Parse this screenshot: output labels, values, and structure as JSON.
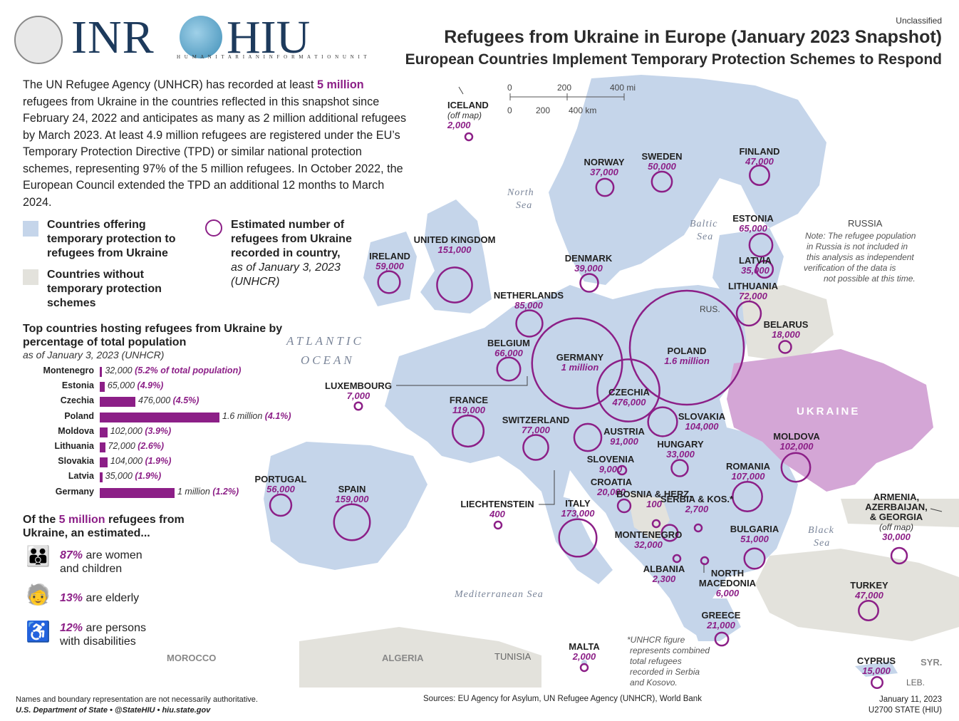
{
  "header": {
    "classification": "Unclassified",
    "title": "Refugees from Ukraine in Europe (January 2023 Snapshot)",
    "subtitle": "European Countries Implement Temporary Protection Schemes to Respond",
    "logo_left": "INR",
    "logo_right": "HIU",
    "logo_tagline": "H U M A N I T A R I A N   I N F O R M A T I O N   U N I T"
  },
  "intro": {
    "lead": "The UN Refugee Agency (UNHCR) has recorded at least ",
    "highlight": "5 million",
    "body": " refugees from Ukraine in the countries reflected in this snapshot since February 24, 2022 and anticipates as many as 2 million additional refugees by March 2023. At least 4.9 million refugees are registered under the EU’s Temporary Protection Directive (TPD) or similar national protection schemes, representing 97% of the 5 million refugees. In October 2022, the European Council extended the TPD an additional 12 months to March 2024."
  },
  "legend": {
    "protection": "Countries offering temporary protection to refugees from Ukraine",
    "no_protection": "Countries without temporary protection schemes",
    "bubble_main": "Estimated number of refugees from Ukraine recorded in country,",
    "bubble_note": " as of January 3, 2023 (UNHCR)",
    "colors": {
      "protection": "#c5d5ea",
      "no_protection": "#e3e2dc",
      "ukraine": "#d4a6d6",
      "accent": "#8c1f87"
    }
  },
  "ranking": {
    "title": "Top countries hosting refugees from Ukraine by percentage of total population",
    "subtitle": "as of January 3, 2023 (UNHCR)",
    "rows": [
      {
        "country": "Montenegro",
        "value": "32,000",
        "pct": "(5.2% of total population)",
        "refugees": 32000
      },
      {
        "country": "Estonia",
        "value": "65,000",
        "pct": "(4.9%)",
        "refugees": 65000
      },
      {
        "country": "Czechia",
        "value": "476,000",
        "pct": "(4.5%)",
        "refugees": 476000
      },
      {
        "country": "Poland",
        "value": "1.6 million",
        "pct": "(4.1%)",
        "refugees": 1600000
      },
      {
        "country": "Moldova",
        "value": "102,000",
        "pct": "(3.9%)",
        "refugees": 102000
      },
      {
        "country": "Lithuania",
        "value": "72,000",
        "pct": "(2.6%)",
        "refugees": 72000
      },
      {
        "country": "Slovakia",
        "value": "104,000",
        "pct": "(1.9%)",
        "refugees": 104000
      },
      {
        "country": "Latvia",
        "value": "35,000",
        "pct": "(1.9%)",
        "refugees": 35000
      },
      {
        "country": "Germany",
        "value": "1 million",
        "pct": "(1.2%)",
        "refugees": 1000000
      }
    ]
  },
  "demographics": {
    "title_lead": "Of the ",
    "title_highlight": "5 million",
    "title_rest": " refugees from Ukraine, an estimated...",
    "items": [
      {
        "pct": "87%",
        "text": " are women and children",
        "icon": "women-children-icon"
      },
      {
        "pct": "13%",
        "text": " are elderly",
        "icon": "elderly-icon"
      },
      {
        "pct": "12%",
        "text": " are persons with disabilities",
        "icon": "wheelchair-icon"
      }
    ]
  },
  "map": {
    "scale": {
      "mi": [
        "0",
        "200",
        "400 mi"
      ],
      "km": [
        "0",
        "200",
        "400 km"
      ]
    },
    "seas": {
      "north_sea": [
        "North",
        "Sea"
      ],
      "baltic_sea": [
        "Baltic",
        "Sea"
      ],
      "atlantic": [
        "ATLANTIC",
        "OCEAN"
      ],
      "med": "Mediterranean Sea",
      "black_sea": [
        "Black",
        "Sea"
      ]
    },
    "countries": [
      {
        "name": "ICELAND",
        "value": "2,000",
        "note": "(off map)",
        "refugees": 2000
      },
      {
        "name": "NORWAY",
        "value": "37,000",
        "refugees": 37000
      },
      {
        "name": "SWEDEN",
        "value": "50,000",
        "refugees": 50000
      },
      {
        "name": "FINLAND",
        "value": "47,000",
        "refugees": 47000
      },
      {
        "name": "ESTONIA",
        "value": "65,000",
        "refugees": 65000
      },
      {
        "name": "LATVIA",
        "value": "35,000",
        "refugees": 35000
      },
      {
        "name": "LITHUANIA",
        "value": "72,000",
        "refugees": 72000
      },
      {
        "name": "BELARUS",
        "value": "18,000",
        "refugees": 18000
      },
      {
        "name": "IRELAND",
        "value": "59,000",
        "refugees": 59000
      },
      {
        "name": "UNITED KINGDOM",
        "value": "151,000",
        "refugees": 151000
      },
      {
        "name": "DENMARK",
        "value": "39,000",
        "refugees": 39000
      },
      {
        "name": "NETHERLANDS",
        "value": "85,000",
        "refugees": 85000
      },
      {
        "name": "BELGIUM",
        "value": "66,000",
        "refugees": 66000
      },
      {
        "name": "GERMANY",
        "value": "1 million",
        "refugees": 1000000
      },
      {
        "name": "POLAND",
        "value": "1.6 million",
        "refugees": 1600000
      },
      {
        "name": "CZECHIA",
        "value": "476,000",
        "refugees": 476000
      },
      {
        "name": "LUXEMBOURG",
        "value": "7,000",
        "refugees": 7000
      },
      {
        "name": "FRANCE",
        "value": "119,000",
        "refugees": 119000
      },
      {
        "name": "SWITZERLAND",
        "value": "77,000",
        "refugees": 77000
      },
      {
        "name": "AUSTRIA",
        "value": "91,000",
        "refugees": 91000
      },
      {
        "name": "SLOVAKIA",
        "value": "104,000",
        "refugees": 104000
      },
      {
        "name": "HUNGARY",
        "value": "33,000",
        "refugees": 33000
      },
      {
        "name": "SLOVENIA",
        "value": "9,000",
        "refugees": 9000
      },
      {
        "name": "CROATIA",
        "value": "20,000",
        "refugees": 20000
      },
      {
        "name": "MOLDOVA",
        "value": "102,000",
        "refugees": 102000
      },
      {
        "name": "ROMANIA",
        "value": "107,000",
        "refugees": 107000
      },
      {
        "name": "PORTUGAL",
        "value": "56,000",
        "refugees": 56000
      },
      {
        "name": "SPAIN",
        "value": "159,000",
        "refugees": 159000
      },
      {
        "name": "LIECHTENSTEIN",
        "value": "400",
        "refugees": 400
      },
      {
        "name": "ITALY",
        "value": "173,000",
        "refugees": 173000
      },
      {
        "name": "BOSNIA & HERZ.",
        "value": "100",
        "refugees": 100
      },
      {
        "name": "SERBIA & KOS.*",
        "value": "2,700",
        "refugees": 2700
      },
      {
        "name": "MONTENEGRO",
        "value": "32,000",
        "refugees": 32000
      },
      {
        "name": "BULGARIA",
        "value": "51,000",
        "refugees": 51000
      },
      {
        "name": "ALBANIA",
        "value": "2,300",
        "refugees": 2300
      },
      {
        "name": "NORTH MACEDONIA",
        "value": "6,000",
        "refugees": 6000
      },
      {
        "name": "GREECE",
        "value": "21,000",
        "refugees": 21000
      },
      {
        "name": "ARMENIA, AZERBAIJAN, & GEORGIA",
        "value": "30,000",
        "note": "(off map)",
        "refugees": 30000
      },
      {
        "name": "TURKEY",
        "value": "47,000",
        "refugees": 47000
      },
      {
        "name": "MALTA",
        "value": "2,000",
        "refugees": 2000
      },
      {
        "name": "CYPRUS",
        "value": "15,000",
        "refugees": 15000
      }
    ],
    "other_labels": {
      "ukraine": "UKRAINE",
      "russia": "RUSSIA",
      "rus": "RUS.",
      "morocco": "MOROCCO",
      "algeria": "ALGERIA",
      "tunisia": "TUNISIA",
      "syria": "SYR.",
      "lebanon": "LEB."
    },
    "russia_note": "Note: The refugee population in Russia is not included in this analysis as independent verification of the data is not possible at this time.",
    "serbia_note": "*UNHCR figure represents combined total refugees recorded in Serbia and Kosovo."
  },
  "footer": {
    "disclaimer": "Names and boundary representation are not necessarily authoritative.",
    "agency": "U.S. Department of State • @StateHIU • hiu.state.gov",
    "sources": "Sources: EU Agency for Asylum, UN Refugee Agency (UNHCR), World Bank",
    "date": "January 11, 2023",
    "code": "U2700 STATE (HIU)"
  }
}
